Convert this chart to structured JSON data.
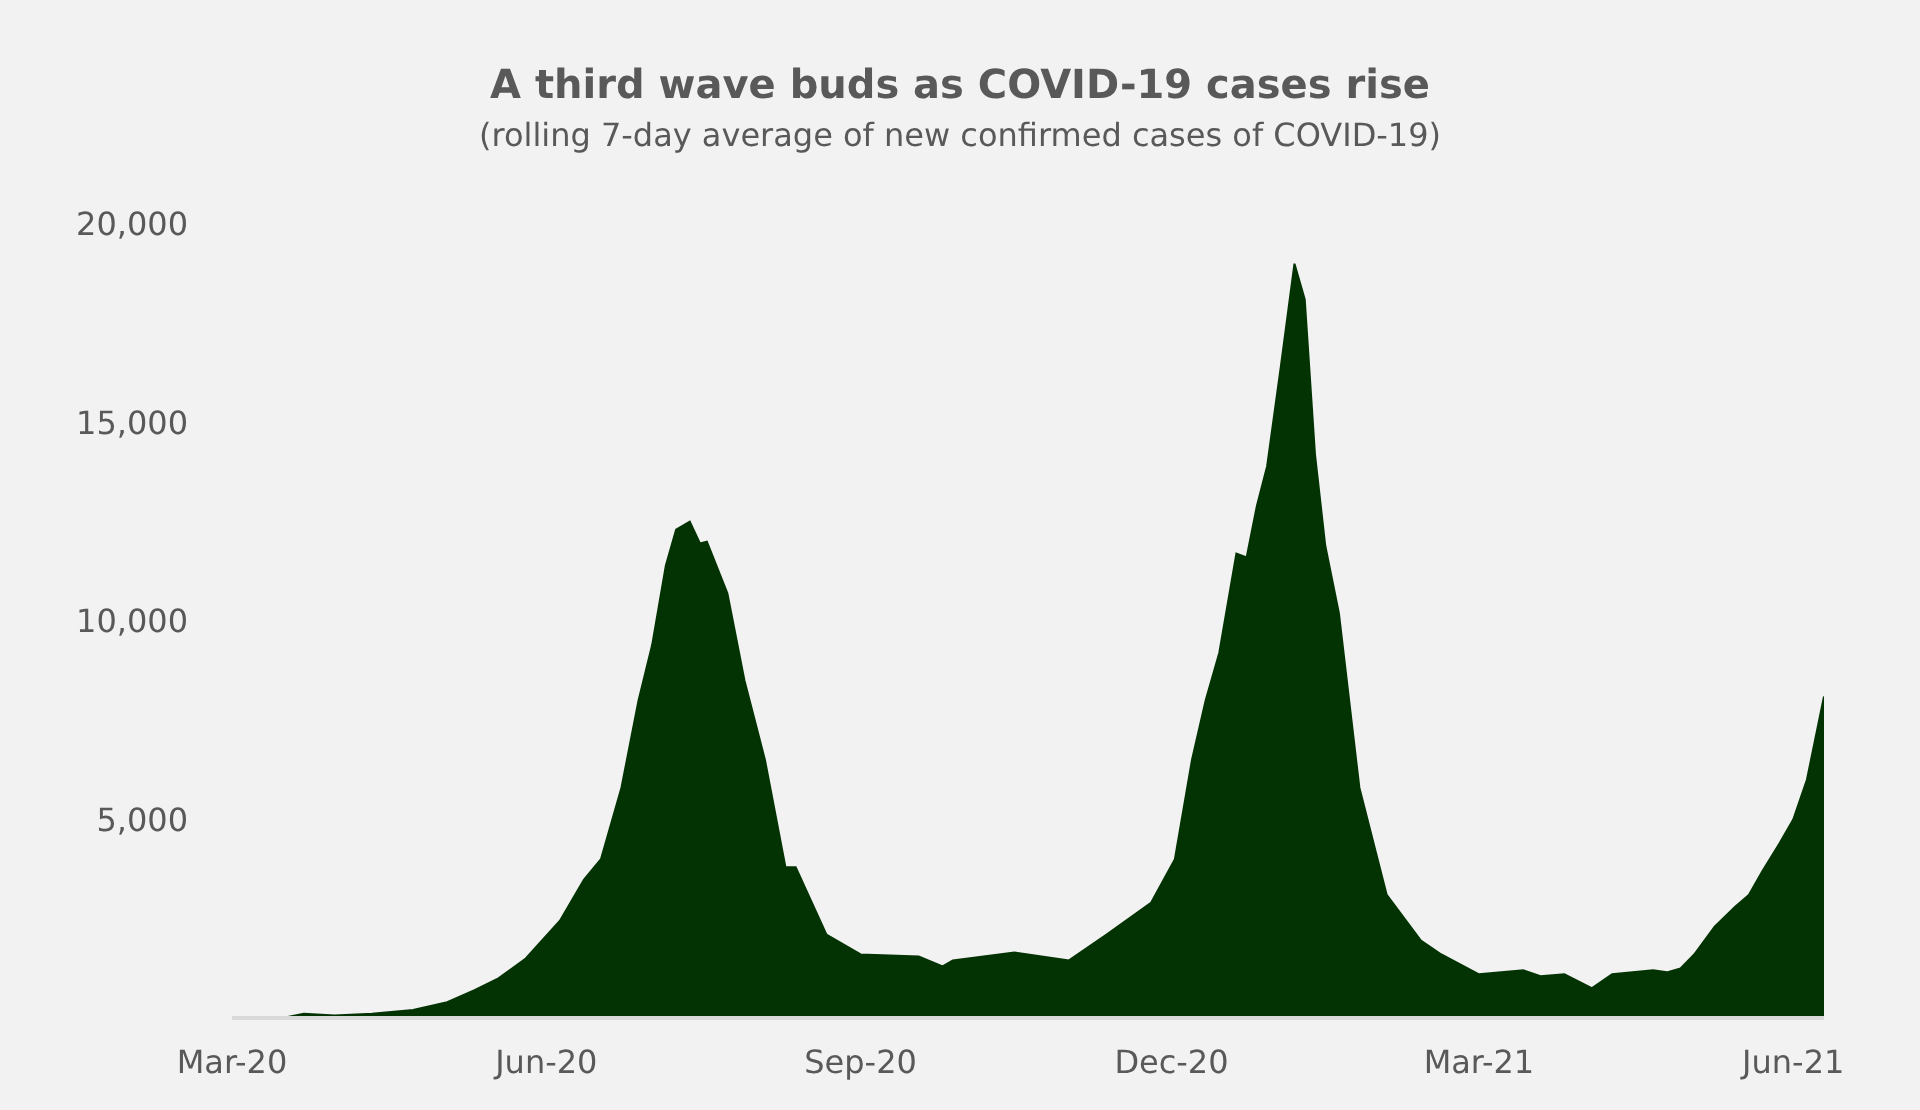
{
  "chart_data": {
    "type": "area",
    "title": "A third wave buds as COVID-19 cases rise",
    "subtitle": "(rolling 7-day average of new confirmed cases of COVID-19)",
    "x": [
      "2020-03-05",
      "2020-03-17",
      "2020-03-22",
      "2020-03-31",
      "2020-04-11",
      "2020-04-23",
      "2020-05-03",
      "2020-05-11",
      "2020-05-18",
      "2020-05-26",
      "2020-06-05",
      "2020-06-12",
      "2020-06-17",
      "2020-06-23",
      "2020-06-28",
      "2020-07-02",
      "2020-07-06",
      "2020-07-09",
      "2020-07-13",
      "2020-07-16",
      "2020-07-18",
      "2020-07-24",
      "2020-07-29",
      "2020-08-04",
      "2020-08-10",
      "2020-08-13",
      "2020-08-22",
      "2020-09-01",
      "2020-09-18",
      "2020-09-25",
      "2020-09-28",
      "2020-10-16",
      "2020-11-01",
      "2020-11-12",
      "2020-11-25",
      "2020-12-02",
      "2020-12-07",
      "2020-12-11",
      "2020-12-15",
      "2020-12-20",
      "2020-12-23",
      "2020-12-26",
      "2020-12-29",
      "2021-01-02",
      "2021-01-06",
      "2021-01-09",
      "2021-01-12",
      "2021-01-15",
      "2021-01-19",
      "2021-01-25",
      "2021-02-02",
      "2021-02-12",
      "2021-02-18",
      "2021-03-01",
      "2021-03-14",
      "2021-03-19",
      "2021-03-26",
      "2021-04-03",
      "2021-04-09",
      "2021-04-21",
      "2021-04-25",
      "2021-04-29",
      "2021-05-03",
      "2021-05-09",
      "2021-05-15",
      "2021-05-19",
      "2021-05-23",
      "2021-05-28",
      "2021-06-01",
      "2021-06-05",
      "2021-06-10"
    ],
    "values": [
      0,
      20,
      110,
      60,
      110,
      200,
      400,
      700,
      1000,
      1500,
      2450,
      3480,
      4000,
      5800,
      8000,
      9400,
      11400,
      12300,
      12500,
      11950,
      12000,
      10700,
      8500,
      6500,
      3800,
      3800,
      2100,
      1600,
      1550,
      1300,
      1450,
      1650,
      1450,
      2100,
      2900,
      4000,
      6500,
      8000,
      9200,
      11700,
      11600,
      12900,
      13900,
      16400,
      19000,
      18100,
      14200,
      11900,
      10200,
      5800,
      3100,
      1950,
      1600,
      1100,
      1200,
      1050,
      1100,
      750,
      1100,
      1200,
      1150,
      1250,
      1600,
      2300,
      2800,
      3100,
      3700,
      4400,
      5000,
      6000,
      8100
    ],
    "color": "#033303",
    "xlim": [
      "2020-03-01",
      "2021-06-10"
    ],
    "xticks": [
      {
        "value": "2020-03-01",
        "label": "Mar-20"
      },
      {
        "value": "2020-06-01",
        "label": "Jun-20"
      },
      {
        "value": "2020-09-01",
        "label": "Sep-20"
      },
      {
        "value": "2020-12-01",
        "label": "Dec-20"
      },
      {
        "value": "2021-03-01",
        "label": "Mar-21"
      },
      {
        "value": "2021-06-01",
        "label": "Jun-21"
      }
    ],
    "ylim": [
      0,
      20000
    ],
    "yticks": [
      {
        "value": 5000,
        "label": "5,000"
      },
      {
        "value": 10000,
        "label": "10,000"
      },
      {
        "value": 15000,
        "label": "15,000"
      },
      {
        "value": 20000,
        "label": "20,000"
      }
    ]
  }
}
